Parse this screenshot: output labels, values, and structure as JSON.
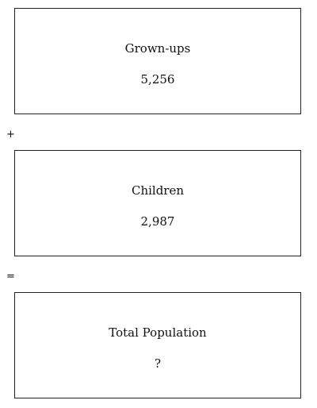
{
  "boxes": [
    {
      "label": "Grown-ups",
      "value": "5,256"
    },
    {
      "label": "Children",
      "value": "2,987"
    },
    {
      "label": "Total Population",
      "value": "?"
    }
  ],
  "operators": {
    "plus": "+",
    "equals": "="
  }
}
